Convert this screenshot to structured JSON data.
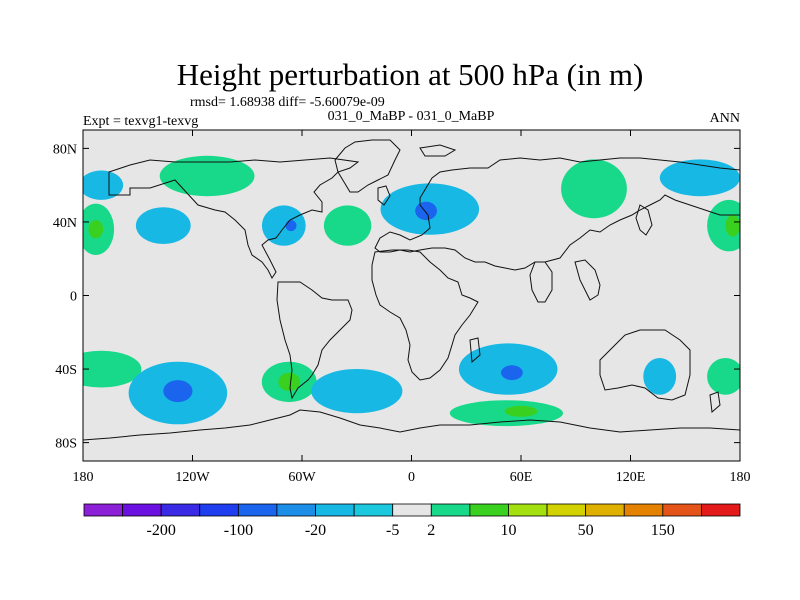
{
  "chart_data": {
    "type": "heatmap",
    "title": "Height perturbation at 500 hPa (in m)",
    "stats": "rmsd= 1.68938 diff= -5.60079e-09",
    "left_label": "Expt = texvg1-texvg",
    "center_label": "031_0_MaBP - 031_0_MaBP",
    "right_label": "ANN",
    "x_range": [
      -180,
      180
    ],
    "y_range": [
      -90,
      90
    ],
    "x_ticks": [
      {
        "value": -180,
        "label": "180"
      },
      {
        "value": -120,
        "label": "120W"
      },
      {
        "value": -60,
        "label": "60W"
      },
      {
        "value": 0,
        "label": "0"
      },
      {
        "value": 60,
        "label": "60E"
      },
      {
        "value": 120,
        "label": "120E"
      },
      {
        "value": 180,
        "label": "180"
      }
    ],
    "y_ticks": [
      {
        "value": 80,
        "label": "80N"
      },
      {
        "value": 40,
        "label": "40N"
      },
      {
        "value": 0,
        "label": "0"
      },
      {
        "value": -40,
        "label": "40S"
      },
      {
        "value": -80,
        "label": "80S"
      }
    ],
    "background_color": "#e6e6e6",
    "colorbar": {
      "colors": [
        "#8c20d6",
        "#6a10e0",
        "#3a2ae6",
        "#1e3ef0",
        "#1a64ee",
        "#1c8ee8",
        "#18b8e4",
        "#1cc8de",
        "#e6e6e6",
        "#18d98a",
        "#3ad020",
        "#a4e010",
        "#d2d200",
        "#e0b000",
        "#e48200",
        "#e45418",
        "#e21a1a"
      ],
      "labels": [
        "-200",
        "-100",
        "-20",
        "-5",
        "2",
        "10",
        "50",
        "150"
      ],
      "label_after_box": [
        1,
        3,
        5,
        7,
        8,
        10,
        12,
        14
      ]
    },
    "anomalies": [
      {
        "lon": -170,
        "lat": 60,
        "rlon": 12,
        "rlat": 8,
        "value": -5
      },
      {
        "lon": -173,
        "lat": 36,
        "rlon": 10,
        "rlat": 14,
        "value": 5
      },
      {
        "lon": -173,
        "lat": 36,
        "rlon": 4,
        "rlat": 5,
        "value": 10
      },
      {
        "lon": -112,
        "lat": 65,
        "rlon": 26,
        "rlat": 11,
        "value": 5
      },
      {
        "lon": -136,
        "lat": 38,
        "rlon": 15,
        "rlat": 10,
        "value": -5
      },
      {
        "lon": -70,
        "lat": 38,
        "rlon": 12,
        "rlat": 11,
        "value": -5
      },
      {
        "lon": -66,
        "lat": 38,
        "rlon": 3,
        "rlat": 3,
        "value": -20
      },
      {
        "lon": -35,
        "lat": 38,
        "rlon": 13,
        "rlat": 11,
        "value": 5
      },
      {
        "lon": 10,
        "lat": 47,
        "rlon": 27,
        "rlat": 14,
        "value": -5
      },
      {
        "lon": 8,
        "lat": 46,
        "rlon": 6,
        "rlat": 5,
        "value": -20
      },
      {
        "lon": 100,
        "lat": 58,
        "rlon": 18,
        "rlat": 16,
        "value": 5
      },
      {
        "lon": 158,
        "lat": 64,
        "rlon": 22,
        "rlat": 10,
        "value": -5
      },
      {
        "lon": 174,
        "lat": 38,
        "rlon": 12,
        "rlat": 14,
        "value": 5
      },
      {
        "lon": 176,
        "lat": 38,
        "rlon": 4,
        "rlat": 6,
        "value": 10
      },
      {
        "lon": -170,
        "lat": -40,
        "rlon": 22,
        "rlat": 10,
        "value": 5
      },
      {
        "lon": -128,
        "lat": -53,
        "rlon": 27,
        "rlat": 17,
        "value": -5
      },
      {
        "lon": -128,
        "lat": -52,
        "rlon": 8,
        "rlat": 6,
        "value": -20
      },
      {
        "lon": -67,
        "lat": -47,
        "rlon": 15,
        "rlat": 11,
        "value": 5
      },
      {
        "lon": -67,
        "lat": -47,
        "rlon": 6,
        "rlat": 5,
        "value": 10
      },
      {
        "lon": -30,
        "lat": -52,
        "rlon": 25,
        "rlat": 12,
        "value": -5
      },
      {
        "lon": 53,
        "lat": -40,
        "rlon": 27,
        "rlat": 14,
        "value": -5
      },
      {
        "lon": 55,
        "lat": -42,
        "rlon": 6,
        "rlat": 4,
        "value": -20
      },
      {
        "lon": 52,
        "lat": -64,
        "rlon": 31,
        "rlat": 7,
        "value": 5
      },
      {
        "lon": 60,
        "lat": -63,
        "rlon": 9,
        "rlat": 3,
        "value": 10
      },
      {
        "lon": 136,
        "lat": -44,
        "rlon": 9,
        "rlat": 10,
        "value": -5
      },
      {
        "lon": 172,
        "lat": -44,
        "rlon": 10,
        "rlat": 10,
        "value": 5
      }
    ]
  }
}
